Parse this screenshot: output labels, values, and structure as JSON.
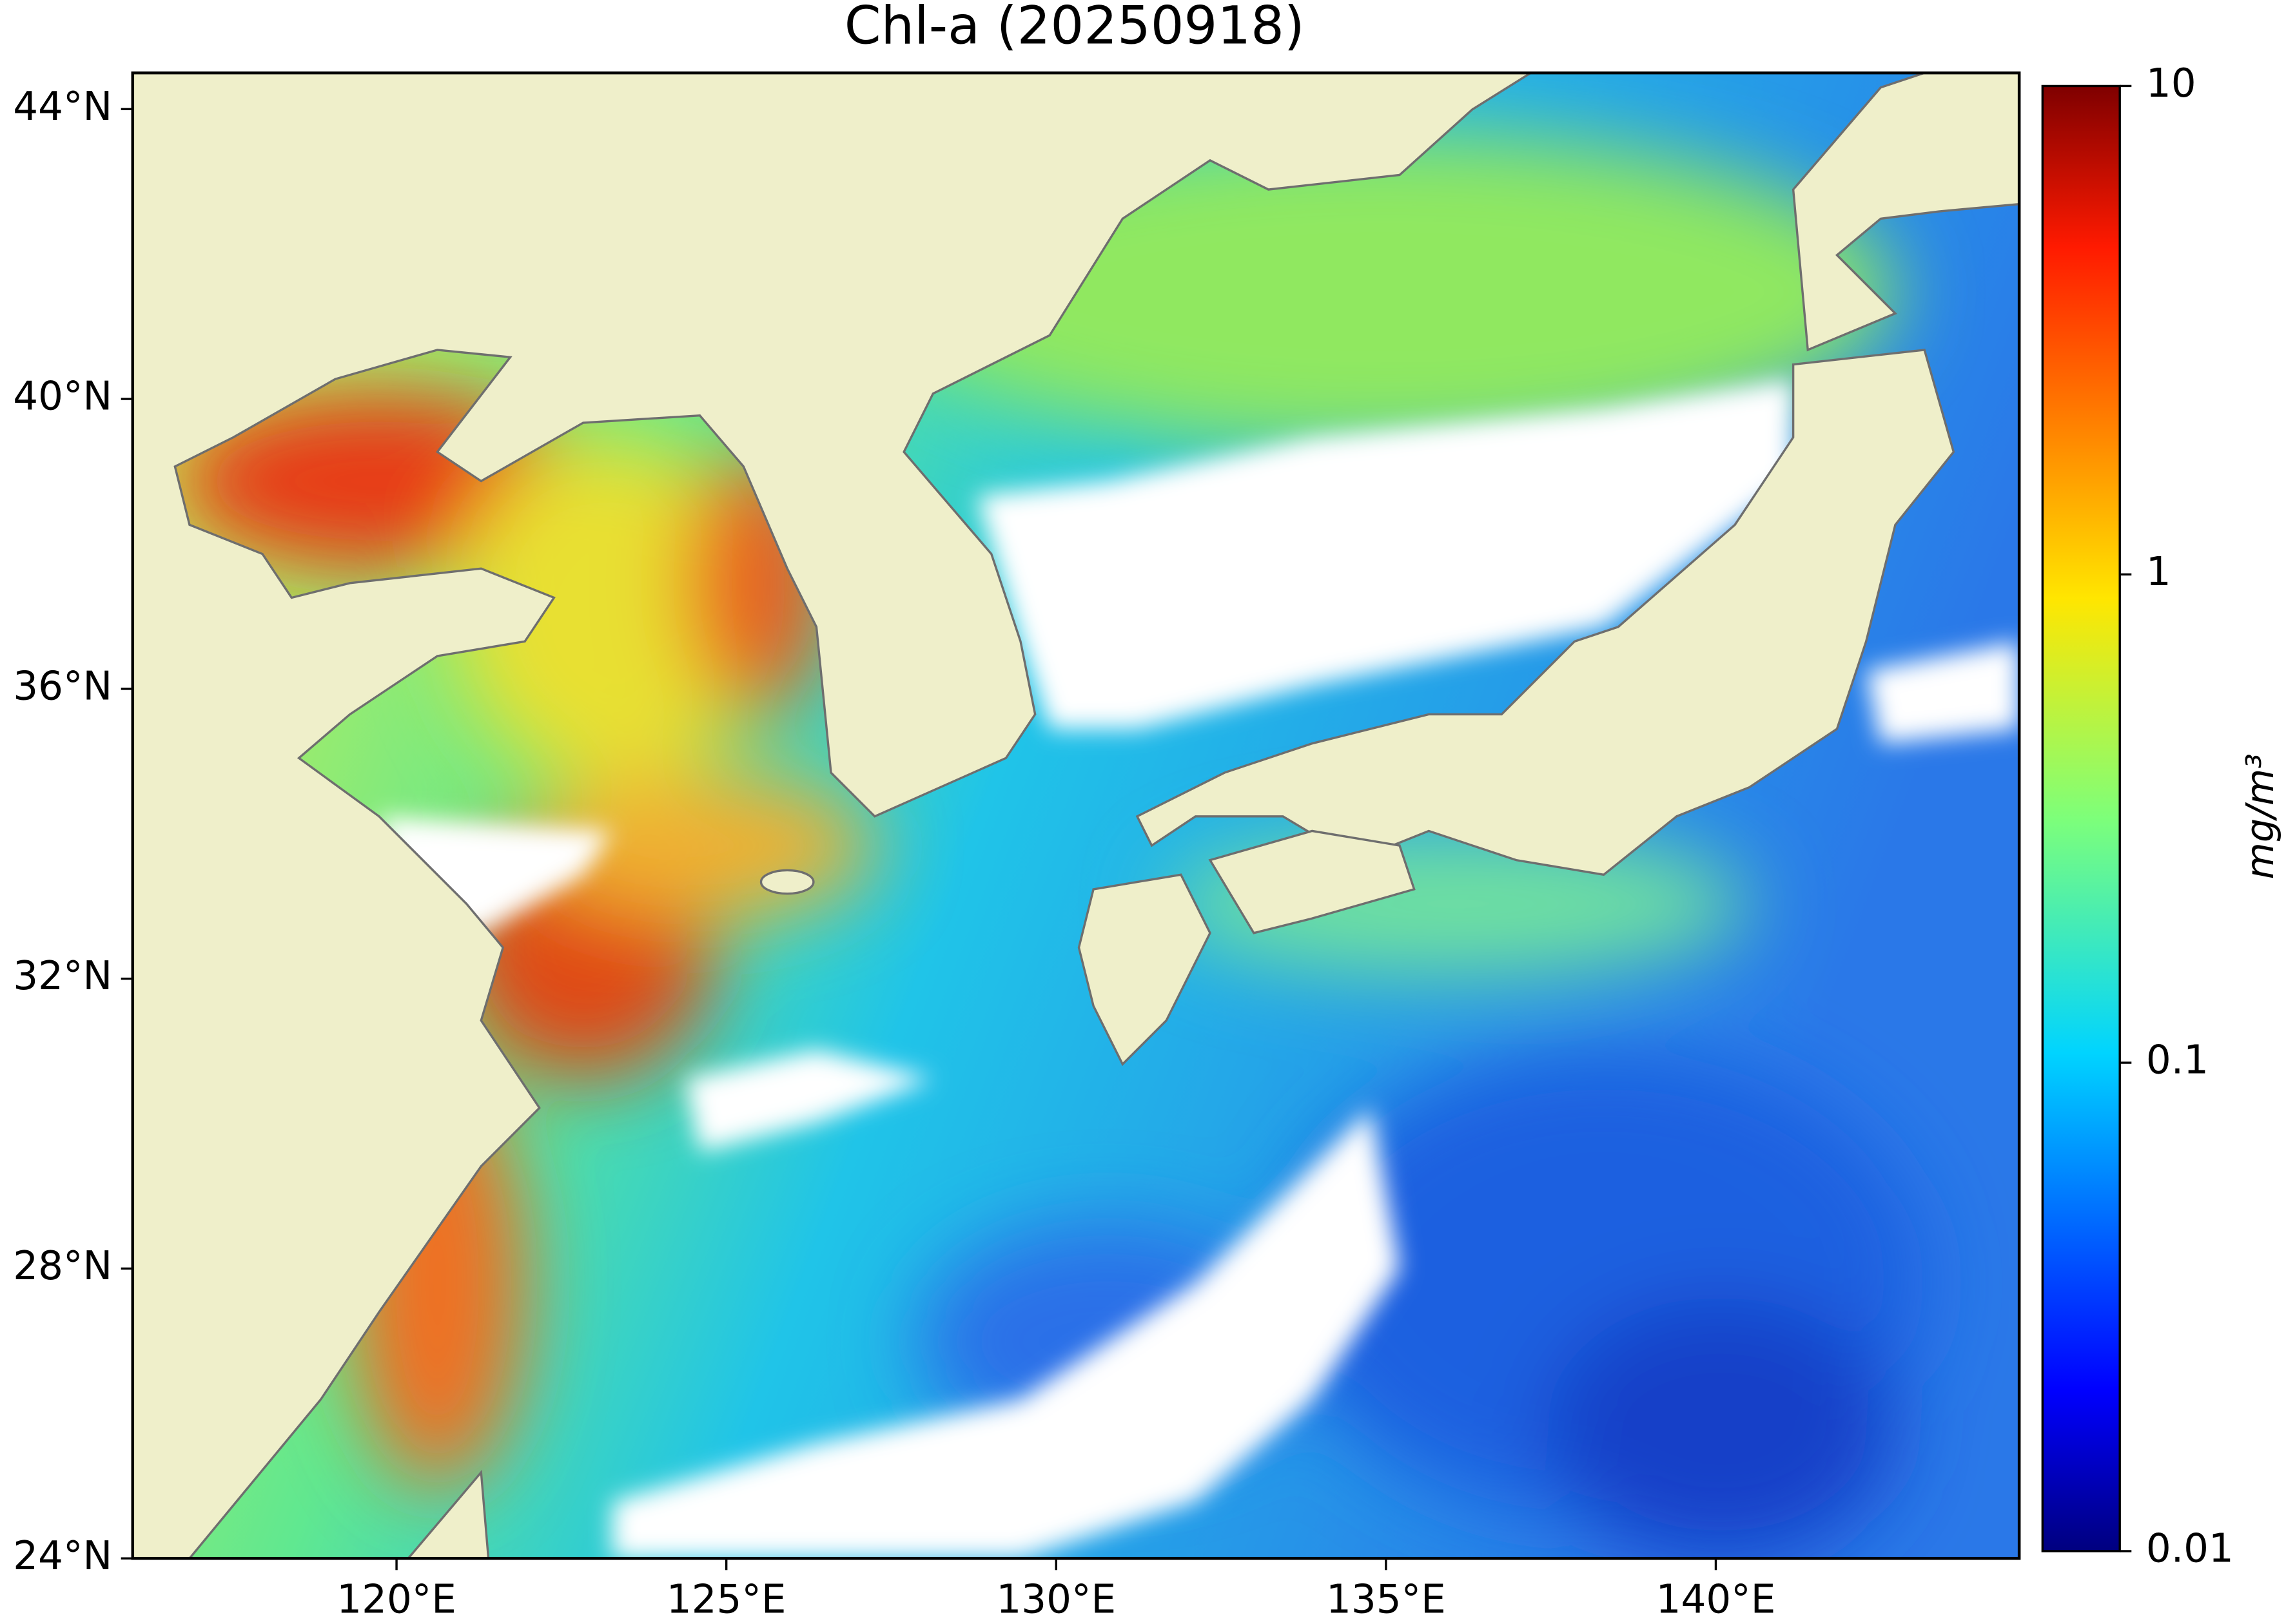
{
  "chart_data": {
    "type": "map",
    "title": "Chl-a (20250918)",
    "xlim": [
      116,
      144.6
    ],
    "ylim": [
      24,
      44.5
    ],
    "xticks": [
      {
        "value": 120,
        "label": "120°E"
      },
      {
        "value": 125,
        "label": "125°E"
      },
      {
        "value": 130,
        "label": "130°E"
      },
      {
        "value": 135,
        "label": "135°E"
      },
      {
        "value": 140,
        "label": "140°E"
      }
    ],
    "yticks": [
      {
        "value": 24,
        "label": "24°N"
      },
      {
        "value": 28,
        "label": "28°N"
      },
      {
        "value": 32,
        "label": "32°N"
      },
      {
        "value": 36,
        "label": "36°N"
      },
      {
        "value": 40,
        "label": "40°N"
      },
      {
        "value": 44,
        "label": "44°N"
      }
    ],
    "colorbar": {
      "label": "mg/m³",
      "clim": [
        0.01,
        10
      ],
      "scale": "log",
      "ticks": [
        0.01,
        0.1,
        1,
        10
      ],
      "colormap": "jet"
    }
  }
}
